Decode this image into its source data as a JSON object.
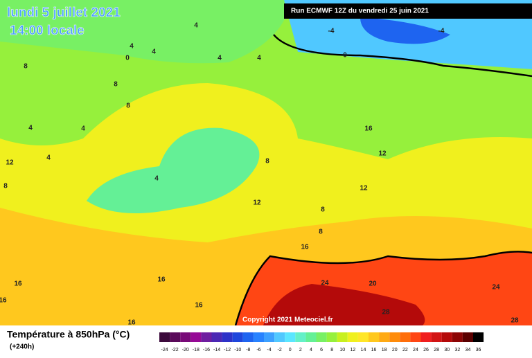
{
  "header": {
    "date": "lundi 5 juillet 2021",
    "time": "14:00 locale",
    "run": "Run ECMWF 12Z du vendredi 25 juin 2021"
  },
  "copyright": "Copyright 2021 Meteociel.fr",
  "legend": {
    "title": "Température à 850hPa (°C)",
    "subtitle": "(+240h)",
    "labels": [
      -24,
      -22,
      -20,
      -18,
      -16,
      -14,
      -12,
      -10,
      -8,
      -6,
      -4,
      -2,
      0,
      2,
      4,
      6,
      8,
      10,
      12,
      14,
      16,
      18,
      20,
      22,
      24,
      26,
      28,
      30,
      32,
      34,
      36
    ],
    "colors": [
      "#3c0a3c",
      "#5a0a5a",
      "#780a78",
      "#960a96",
      "#6e1ea0",
      "#4b28b4",
      "#2d32c8",
      "#1e46dc",
      "#1e64f0",
      "#2882ff",
      "#3ca0ff",
      "#50c8ff",
      "#5ae6ff",
      "#64f0c8",
      "#64f096",
      "#78f064",
      "#96f03c",
      "#c8f01e",
      "#f0f01e",
      "#ffe628",
      "#ffc81e",
      "#ffaa14",
      "#ff8c0a",
      "#ff6e0a",
      "#ff4614",
      "#f01e1e",
      "#d21414",
      "#b40a0a",
      "#8c0505",
      "#5a0000",
      "#000000"
    ]
  },
  "contours": [
    "4",
    "4",
    "4",
    "0",
    "4",
    "4",
    "8",
    "8",
    "8",
    "4",
    "4",
    "16",
    "4",
    "12",
    "8",
    "12",
    "4",
    "8",
    "12",
    "12",
    "8",
    "8",
    "16",
    "16",
    "16",
    "24",
    "20",
    "24",
    "16",
    "16",
    "28",
    "16",
    "28",
    "-4",
    "-4",
    "0"
  ]
}
